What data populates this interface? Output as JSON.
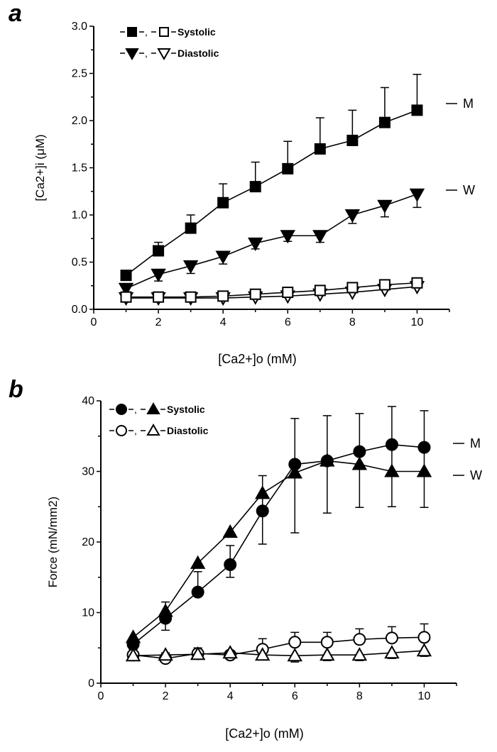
{
  "chart_data": [
    {
      "panel": "a",
      "type": "line",
      "xlabel": "[Ca2+]o (mM)",
      "ylabel": "[Ca2+]i (μM)",
      "xlim": [
        0,
        11
      ],
      "ylim": [
        0,
        3.0
      ],
      "xticks": [
        0,
        2,
        4,
        6,
        8,
        10
      ],
      "yticks": [
        "0.0",
        "0.5",
        "1.0",
        "1.5",
        "2.0",
        "2.5",
        "3.0"
      ],
      "legend": {
        "placement": "top-left",
        "entries": [
          "Systolic",
          "Diastolic"
        ]
      },
      "line_labels": [
        "M",
        "W"
      ],
      "x": [
        1,
        2,
        3,
        4,
        5,
        6,
        7,
        8,
        9,
        10
      ],
      "series": [
        {
          "marker": "square",
          "fill": "filled",
          "label": "M",
          "values": [
            0.36,
            0.62,
            0.86,
            1.13,
            1.3,
            1.49,
            1.7,
            1.79,
            1.98,
            2.11
          ],
          "error_upper": [
            0.4,
            0.71,
            1.0,
            1.33,
            1.56,
            1.78,
            2.03,
            2.11,
            2.35,
            2.49
          ]
        },
        {
          "marker": "triangle-down",
          "fill": "filled",
          "label": "W",
          "values": [
            0.22,
            0.37,
            0.46,
            0.56,
            0.7,
            0.78,
            0.78,
            1.0,
            1.1,
            1.22
          ],
          "error_lower": [
            0.17,
            0.3,
            0.38,
            0.48,
            0.64,
            0.72,
            0.71,
            0.91,
            0.98,
            1.08
          ]
        },
        {
          "marker": "triangle-down",
          "fill": "open",
          "values": [
            0.12,
            0.12,
            0.12,
            0.12,
            0.13,
            0.14,
            0.16,
            0.18,
            0.21,
            0.24
          ]
        },
        {
          "marker": "square",
          "fill": "open",
          "values": [
            0.13,
            0.13,
            0.13,
            0.14,
            0.16,
            0.18,
            0.2,
            0.23,
            0.26,
            0.28
          ]
        }
      ]
    },
    {
      "panel": "b",
      "type": "line",
      "xlabel": "[Ca2+]o (mM)",
      "ylabel": "Force (mN/mm2)",
      "xlim": [
        0,
        11
      ],
      "ylim": [
        0,
        40
      ],
      "xticks": [
        0,
        2,
        4,
        6,
        8,
        10
      ],
      "yticks": [
        "0",
        "10",
        "20",
        "30",
        "40"
      ],
      "legend": {
        "placement": "top-left",
        "entries": [
          "Systolic",
          "Diastolic"
        ]
      },
      "line_labels": [
        "M",
        "W"
      ],
      "x": [
        1,
        2,
        3,
        4,
        5,
        6,
        7,
        8,
        9,
        10
      ],
      "series": [
        {
          "marker": "circle",
          "fill": "filled",
          "label": "M",
          "values": [
            5.5,
            9.2,
            12.9,
            16.8,
            24.4,
            31.0,
            31.5,
            32.8,
            33.8,
            33.4
          ],
          "error_upper": [
            6.0,
            11.5,
            15.8,
            19.5,
            29.4,
            37.5,
            37.9,
            38.2,
            39.2,
            38.6
          ],
          "error_lower": [
            5.0,
            7.5,
            12.9,
            15.0,
            19.7,
            21.3,
            24.1,
            24.9,
            25.0,
            24.9
          ]
        },
        {
          "marker": "triangle-up",
          "fill": "filled",
          "label": "W",
          "values": [
            6.5,
            10.2,
            17.0,
            21.4,
            26.9,
            29.8,
            31.5,
            31.0,
            30.0,
            30.0
          ]
        },
        {
          "marker": "circle",
          "fill": "open",
          "values": [
            4.0,
            3.5,
            4.2,
            4.0,
            4.8,
            5.8,
            5.8,
            6.2,
            6.4,
            6.5
          ],
          "error_upper": [
            4.8,
            4.3,
            5.0,
            4.5,
            6.3,
            7.2,
            7.2,
            7.7,
            8.0,
            8.4
          ]
        },
        {
          "marker": "triangle-up",
          "fill": "open",
          "values": [
            3.9,
            4.0,
            4.1,
            4.3,
            4.0,
            3.9,
            4.0,
            4.0,
            4.3,
            4.6
          ],
          "error_lower": [
            3.3,
            3.4,
            3.6,
            3.7,
            3.3,
            3.0,
            3.2,
            3.2,
            3.5,
            3.8
          ]
        }
      ]
    }
  ]
}
